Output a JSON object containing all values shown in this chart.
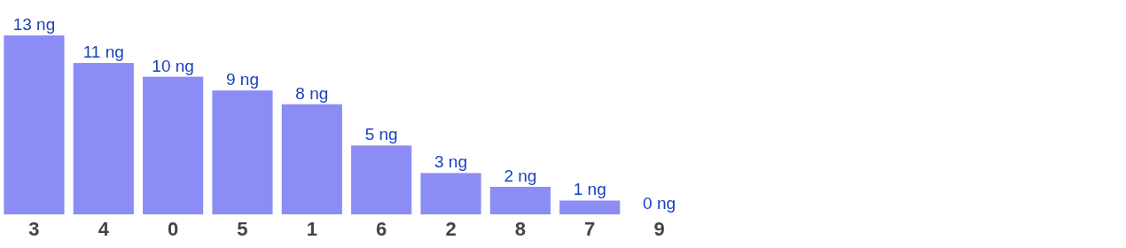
{
  "chart_data": {
    "type": "bar",
    "categories": [
      "3",
      "4",
      "0",
      "5",
      "1",
      "6",
      "2",
      "8",
      "7",
      "9"
    ],
    "values": [
      13,
      11,
      10,
      9,
      8,
      5,
      3,
      2,
      1,
      0
    ],
    "value_labels": [
      "13 ng",
      "11 ng",
      "10 ng",
      "9 ng",
      "8 ng",
      "5 ng",
      "3 ng",
      "2 ng",
      "1 ng",
      "0 ng"
    ],
    "color": "#8c8cf5"
  }
}
